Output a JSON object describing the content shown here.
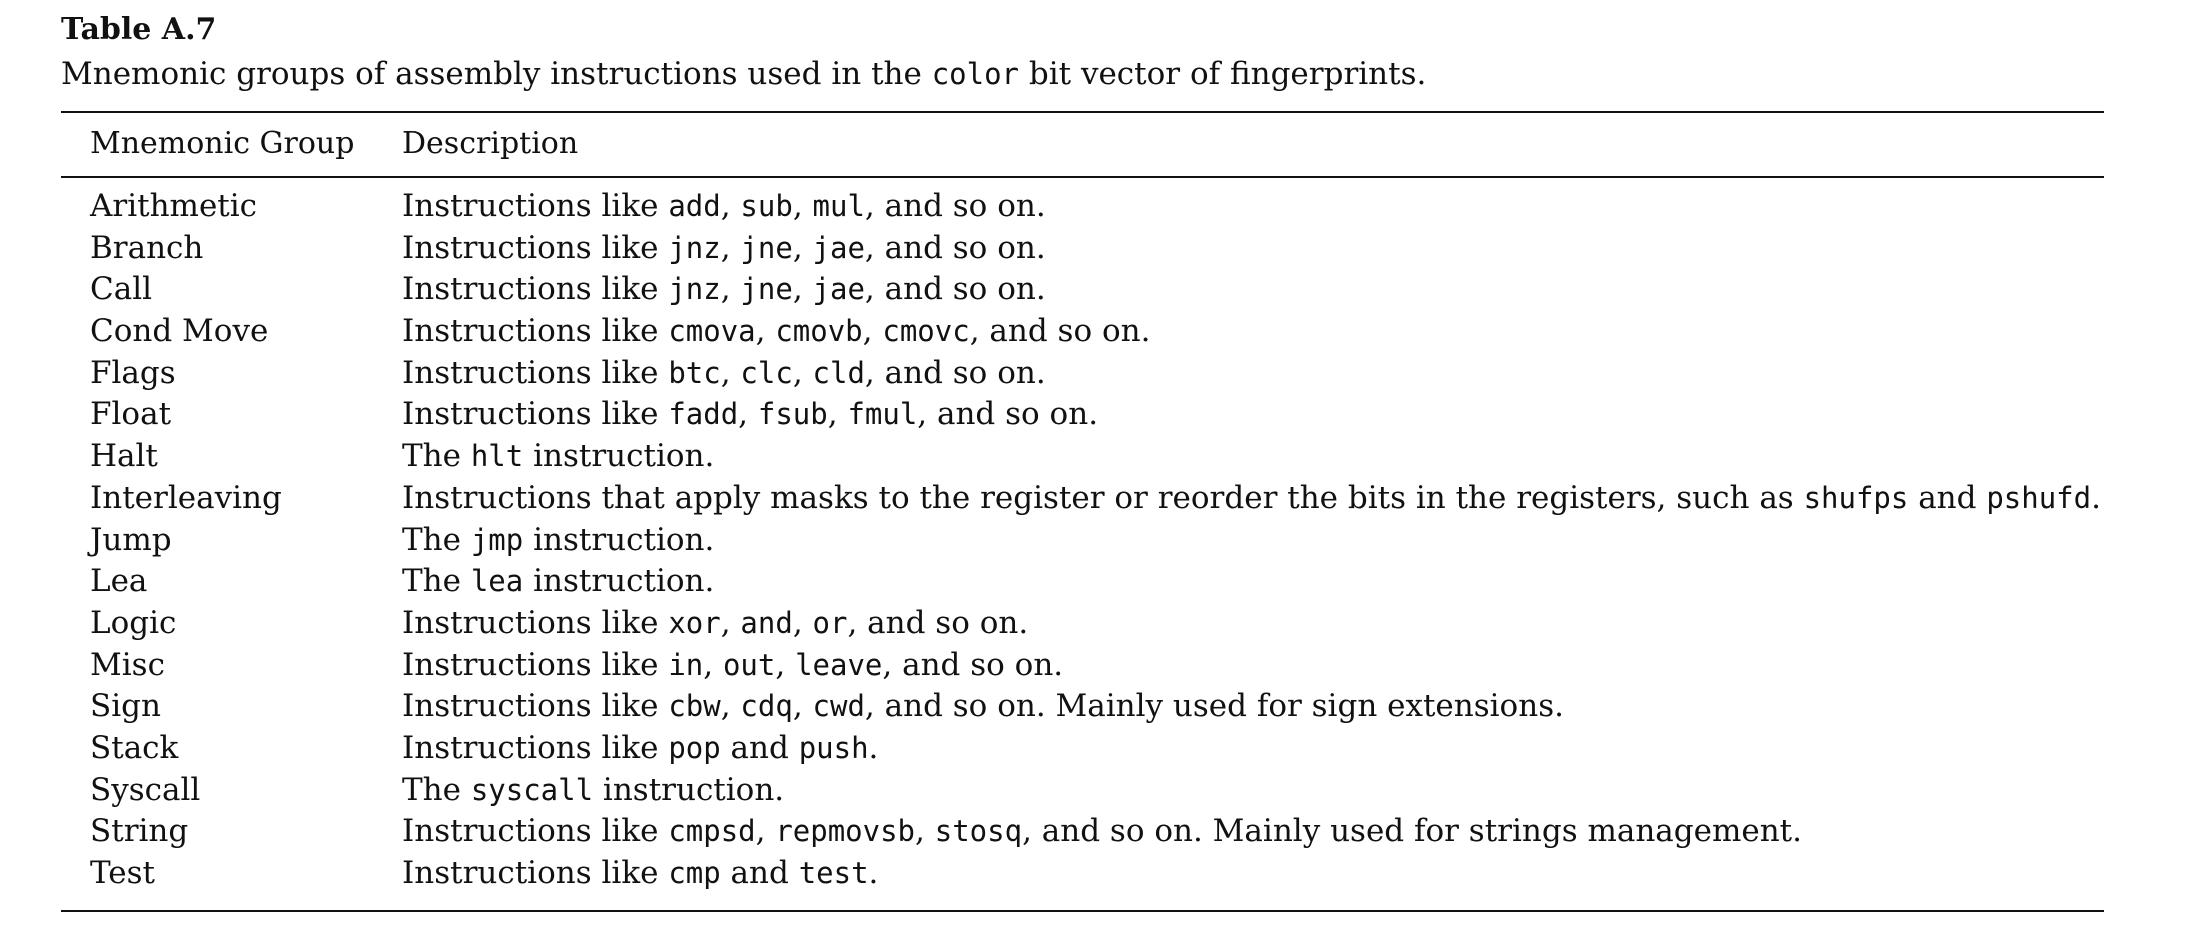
{
  "table_label": "Table A.7",
  "caption": {
    "before": "Mnemonic groups of assembly instructions used in the ",
    "code": "color",
    "after": " bit vector of fingerprints."
  },
  "columns": [
    "Mnemonic Group",
    "Description"
  ],
  "rows": [
    {
      "group": "Arithmetic",
      "desc": [
        [
          "t",
          "Instructions like "
        ],
        [
          "c",
          "add"
        ],
        [
          "t",
          ", "
        ],
        [
          "c",
          "sub"
        ],
        [
          "t",
          ", "
        ],
        [
          "c",
          "mul"
        ],
        [
          "t",
          ", and so on."
        ]
      ]
    },
    {
      "group": "Branch",
      "desc": [
        [
          "t",
          "Instructions like "
        ],
        [
          "c",
          "jnz"
        ],
        [
          "t",
          ", "
        ],
        [
          "c",
          "jne"
        ],
        [
          "t",
          ", "
        ],
        [
          "c",
          "jae"
        ],
        [
          "t",
          ", and so on."
        ]
      ]
    },
    {
      "group": "Call",
      "desc": [
        [
          "t",
          "Instructions like "
        ],
        [
          "c",
          "jnz"
        ],
        [
          "t",
          ", "
        ],
        [
          "c",
          "jne"
        ],
        [
          "t",
          ", "
        ],
        [
          "c",
          "jae"
        ],
        [
          "t",
          ", and so on."
        ]
      ]
    },
    {
      "group": "Cond Move",
      "desc": [
        [
          "t",
          "Instructions like "
        ],
        [
          "c",
          "cmova"
        ],
        [
          "t",
          ", "
        ],
        [
          "c",
          "cmovb"
        ],
        [
          "t",
          ", "
        ],
        [
          "c",
          "cmovc"
        ],
        [
          "t",
          ", and so on."
        ]
      ]
    },
    {
      "group": "Flags",
      "desc": [
        [
          "t",
          "Instructions like "
        ],
        [
          "c",
          "btc"
        ],
        [
          "t",
          ", "
        ],
        [
          "c",
          "clc"
        ],
        [
          "t",
          ", "
        ],
        [
          "c",
          "cld"
        ],
        [
          "t",
          ", and so on."
        ]
      ]
    },
    {
      "group": "Float",
      "desc": [
        [
          "t",
          "Instructions like "
        ],
        [
          "c",
          "fadd"
        ],
        [
          "t",
          ", "
        ],
        [
          "c",
          "fsub"
        ],
        [
          "t",
          ", "
        ],
        [
          "c",
          "fmul"
        ],
        [
          "t",
          ", and so on."
        ]
      ]
    },
    {
      "group": "Halt",
      "desc": [
        [
          "t",
          "The "
        ],
        [
          "c",
          "hlt"
        ],
        [
          "t",
          " instruction."
        ]
      ]
    },
    {
      "group": "Interleaving",
      "desc": [
        [
          "t",
          "Instructions that apply masks to the register or reorder the bits in the registers, such as "
        ],
        [
          "c",
          "shufps"
        ],
        [
          "t",
          " and "
        ],
        [
          "c",
          "pshufd"
        ],
        [
          "t",
          "."
        ]
      ]
    },
    {
      "group": "Jump",
      "desc": [
        [
          "t",
          "The "
        ],
        [
          "c",
          "jmp"
        ],
        [
          "t",
          " instruction."
        ]
      ]
    },
    {
      "group": "Lea",
      "desc": [
        [
          "t",
          "The "
        ],
        [
          "c",
          "lea"
        ],
        [
          "t",
          " instruction."
        ]
      ]
    },
    {
      "group": "Logic",
      "desc": [
        [
          "t",
          "Instructions like "
        ],
        [
          "c",
          "xor"
        ],
        [
          "t",
          ", "
        ],
        [
          "c",
          "and"
        ],
        [
          "t",
          ", "
        ],
        [
          "c",
          "or"
        ],
        [
          "t",
          ", and so on."
        ]
      ]
    },
    {
      "group": "Misc",
      "desc": [
        [
          "t",
          "Instructions like "
        ],
        [
          "c",
          "in"
        ],
        [
          "t",
          ", "
        ],
        [
          "c",
          "out"
        ],
        [
          "t",
          ", "
        ],
        [
          "c",
          "leave"
        ],
        [
          "t",
          ", and so on."
        ]
      ]
    },
    {
      "group": "Sign",
      "desc": [
        [
          "t",
          "Instructions like "
        ],
        [
          "c",
          "cbw"
        ],
        [
          "t",
          ", "
        ],
        [
          "c",
          "cdq"
        ],
        [
          "t",
          ", "
        ],
        [
          "c",
          "cwd"
        ],
        [
          "t",
          ", and so on. Mainly used for sign extensions."
        ]
      ]
    },
    {
      "group": "Stack",
      "desc": [
        [
          "t",
          "Instructions like "
        ],
        [
          "c",
          "pop"
        ],
        [
          "t",
          " and "
        ],
        [
          "c",
          "push"
        ],
        [
          "t",
          "."
        ]
      ]
    },
    {
      "group": "Syscall",
      "desc": [
        [
          "t",
          "The "
        ],
        [
          "c",
          "syscall"
        ],
        [
          "t",
          " instruction."
        ]
      ]
    },
    {
      "group": "String",
      "desc": [
        [
          "t",
          "Instructions like "
        ],
        [
          "c",
          "cmpsd"
        ],
        [
          "t",
          ", "
        ],
        [
          "c",
          "repmovsb"
        ],
        [
          "t",
          ", "
        ],
        [
          "c",
          "stosq"
        ],
        [
          "t",
          ", and so on. Mainly used for strings management."
        ]
      ]
    },
    {
      "group": "Test",
      "desc": [
        [
          "t",
          "Instructions like "
        ],
        [
          "c",
          "cmp"
        ],
        [
          "t",
          " and "
        ],
        [
          "c",
          "test"
        ],
        [
          "t",
          "."
        ]
      ]
    }
  ]
}
